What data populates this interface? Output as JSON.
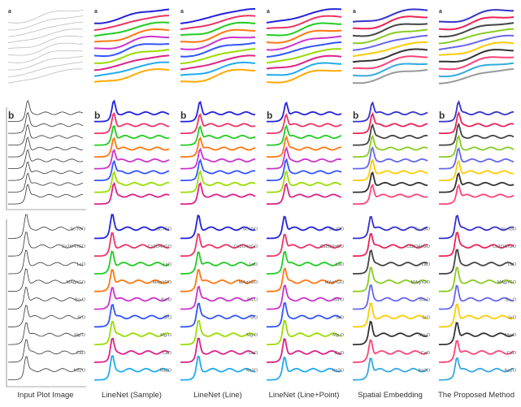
{
  "figure": {
    "columns": [
      {
        "caption": "Input Plot Image",
        "panel_letters": [
          "a",
          "b",
          ""
        ],
        "palette": "gray"
      },
      {
        "caption": "LineNet (Sample)",
        "panel_letters": [
          "a",
          "b",
          ""
        ],
        "palette": "vivid"
      },
      {
        "caption": "LineNet (Line)",
        "panel_letters": [
          "a",
          "b",
          ""
        ],
        "palette": "vivid"
      },
      {
        "caption": "LineNet (Line+Point)",
        "panel_letters": [
          "a",
          "b",
          ""
        ],
        "palette": "vivid"
      },
      {
        "caption": "Spatial Embedding",
        "panel_letters": [
          "a",
          "b",
          ""
        ],
        "palette": "mixed"
      },
      {
        "caption": "The Proposed Method",
        "panel_letters": [
          "a",
          "b",
          ""
        ],
        "palette": "mixed"
      }
    ],
    "row3_labels": [
      "Sc-rGO",
      "Cs2O4/rGO",
      "LaO",
      "MAg/rGO",
      "Ba-O",
      "SrO",
      "Mg-O",
      "CaO",
      "Na2O"
    ],
    "palettes": {
      "gray": [
        "#444444",
        "#555555",
        "#444444",
        "#555555",
        "#444444",
        "#555555",
        "#444444",
        "#555555",
        "#444444",
        "#555555"
      ],
      "vivid": [
        "#2222dd",
        "#ee3366",
        "#22cc22",
        "#ff7711",
        "#cc33cc",
        "#3355ff",
        "#99dd00",
        "#dd2288",
        "#22aaee",
        "#ffaa00"
      ],
      "mixed": [
        "#3333cc",
        "#ee2255",
        "#444444",
        "#88cc22",
        "#6666ee",
        "#ffcc00",
        "#333333",
        "#ff4477",
        "#33aadd",
        "#999999"
      ]
    }
  }
}
